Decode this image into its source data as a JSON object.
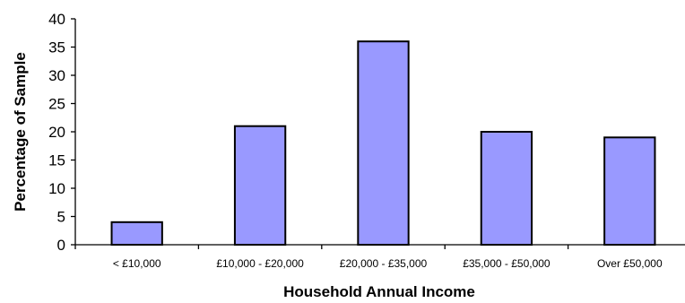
{
  "chart_data": {
    "type": "bar",
    "title": "",
    "xlabel": "Household Annual Income",
    "ylabel": "Percentage of Sample",
    "categories": [
      "< £10,000",
      "£10,000 - £20,000",
      "£20,000 - £35,000",
      "£35,000 - £50,000",
      "Over £50,000"
    ],
    "values": [
      4,
      21,
      36,
      20,
      19
    ],
    "ylim": [
      0,
      40
    ],
    "yticks": [
      0,
      5,
      10,
      15,
      20,
      25,
      30,
      35,
      40
    ],
    "grid": false,
    "legend": "none",
    "bar_color": "#9999ff",
    "bar_edge_color": "#000000"
  }
}
